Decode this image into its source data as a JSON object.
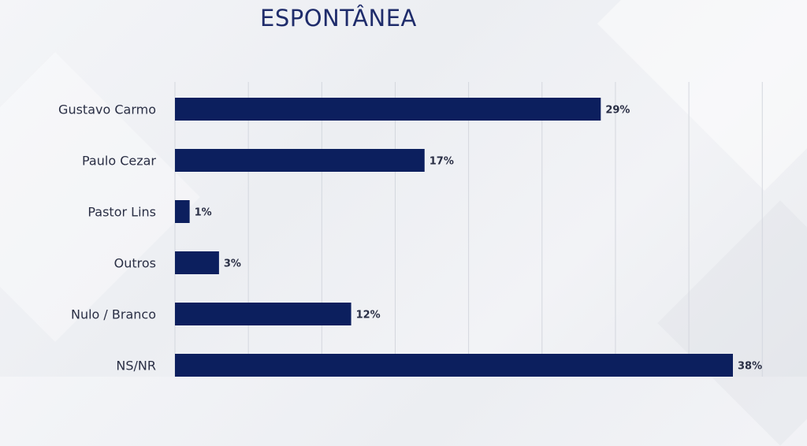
{
  "chart_data": {
    "type": "bar",
    "orientation": "horizontal",
    "title": "ESPONTÂNEA",
    "categories": [
      "Gustavo Carmo",
      "Paulo Cezar",
      "Pastor Lins",
      "Outros",
      "Nulo / Branco",
      "NS/NR"
    ],
    "values": [
      29,
      17,
      1,
      3,
      12,
      38
    ],
    "value_labels": [
      "29%",
      "17%",
      "1%",
      "3%",
      "12%",
      "38%"
    ],
    "xlim": [
      0,
      40
    ],
    "grid": true,
    "bar_color": "#0c1f5e"
  }
}
